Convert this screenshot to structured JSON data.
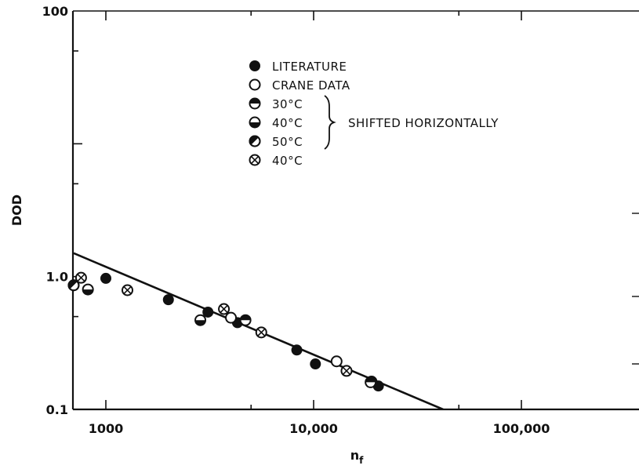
{
  "chart_data": {
    "type": "scatter",
    "xlabel": "n",
    "xlabel_sub": "f",
    "ylabel": "DOD",
    "x_scale": "log",
    "y_scale": "log",
    "xlim": [
      700,
      450000
    ],
    "ylim": [
      0.1,
      100
    ],
    "x_ticks": [
      {
        "value": 1000,
        "label": "1000"
      },
      {
        "value": 10000,
        "label": "10,000"
      },
      {
        "value": 100000,
        "label": "100,000"
      }
    ],
    "y_ticks": [
      {
        "value": 0.1,
        "label": "0.1"
      },
      {
        "value": 1.0,
        "label": "1.0"
      },
      {
        "value": 100,
        "label": "100"
      }
    ],
    "legend": {
      "position": "top-center",
      "items": [
        {
          "key": "literature",
          "label": "LITERATURE",
          "marker": "filled"
        },
        {
          "key": "crane",
          "label": "CRANE DATA",
          "marker": "open"
        },
        {
          "key": "c30",
          "label": "30°C",
          "marker": "half-top"
        },
        {
          "key": "c40",
          "label": "40°C",
          "marker": "half-bottom"
        },
        {
          "key": "c50",
          "label": "50°C",
          "marker": "half-right"
        },
        {
          "key": "c40x",
          "label": "40°C",
          "marker": "cross"
        }
      ],
      "group_note": "SHIFTED HORIZONTALLY"
    },
    "series": [
      {
        "key": "literature",
        "marker": "filled",
        "points": [
          [
            1000,
            0.97
          ],
          [
            2000,
            0.67
          ],
          [
            3100,
            0.54
          ],
          [
            4300,
            0.45
          ],
          [
            8300,
            0.28
          ],
          [
            10200,
            0.22
          ],
          [
            20500,
            0.15
          ]
        ]
      },
      {
        "key": "crane",
        "marker": "open",
        "points": [
          [
            4000,
            0.49
          ],
          [
            12900,
            0.23
          ],
          [
            19000,
            0.162
          ]
        ]
      },
      {
        "key": "c30",
        "marker": "half-top",
        "points": [
          [
            4700,
            0.47
          ],
          [
            18800,
            0.16
          ]
        ]
      },
      {
        "key": "c40",
        "marker": "half-bottom",
        "points": [
          [
            820,
            0.8
          ],
          [
            2850,
            0.47
          ]
        ]
      },
      {
        "key": "c50",
        "marker": "half-right",
        "points": [
          [
            700,
            0.86
          ]
        ]
      },
      {
        "key": "c40x",
        "marker": "cross",
        "points": [
          [
            760,
            0.98
          ],
          [
            1270,
            0.79
          ],
          [
            3700,
            0.57
          ],
          [
            5600,
            0.38
          ],
          [
            14400,
            0.195
          ]
        ]
      }
    ],
    "fit_line": {
      "points": [
        [
          700,
          1.5
        ],
        [
          42000,
          0.1
        ]
      ]
    }
  }
}
